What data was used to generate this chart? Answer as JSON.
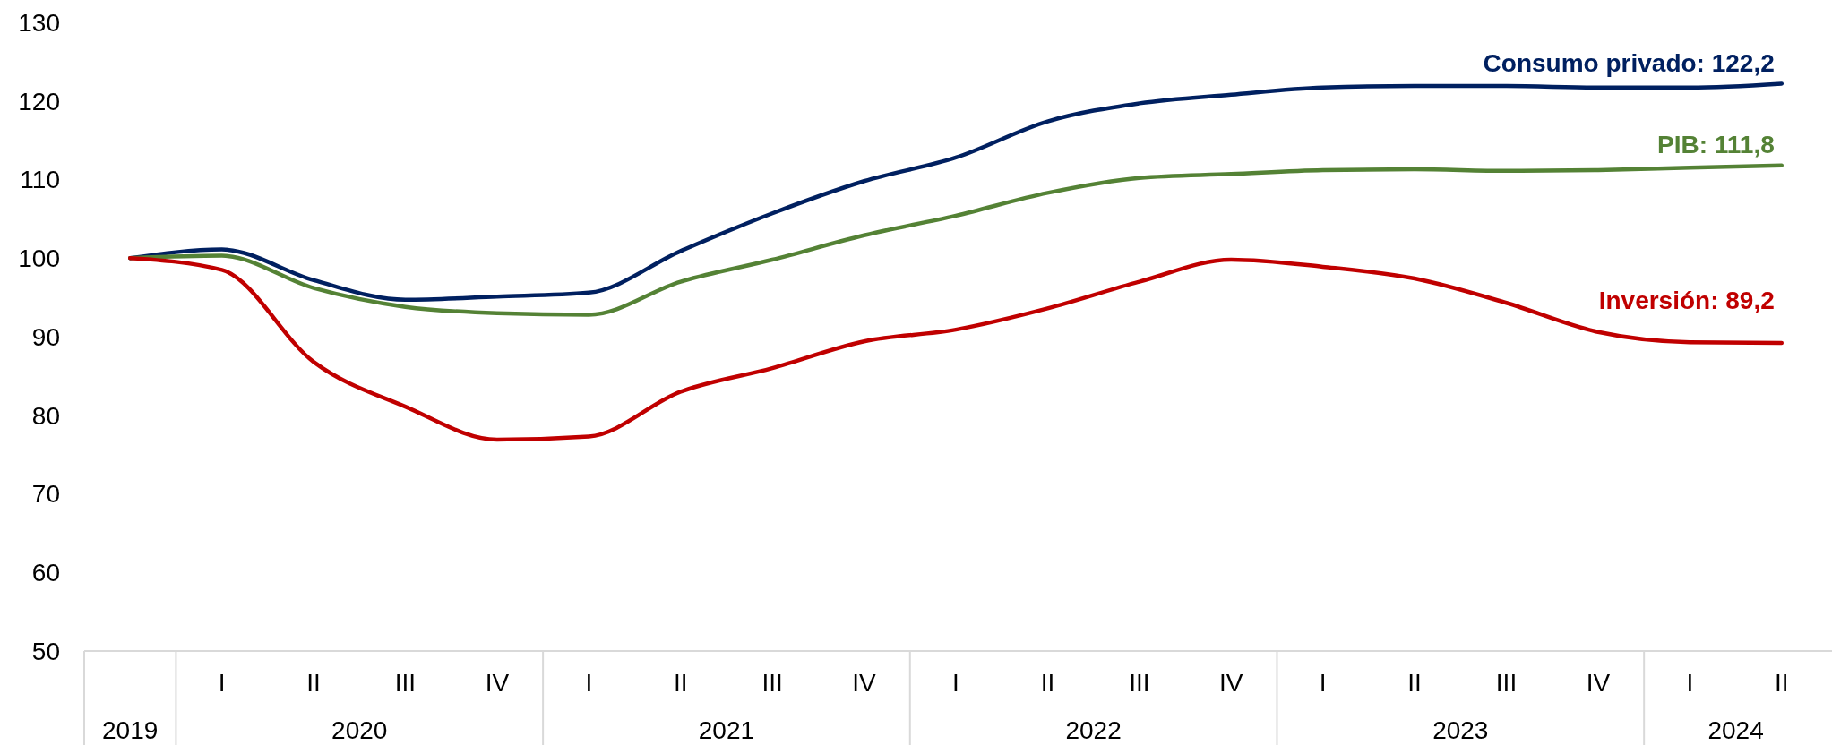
{
  "chart_data": {
    "type": "line",
    "categories": [
      null,
      "I",
      "II",
      "III",
      "IV",
      "I",
      "II",
      "III",
      "IV",
      "I",
      "II",
      "III",
      "IV",
      "I",
      "II",
      "III",
      "IV",
      "I",
      "II"
    ],
    "series": [
      {
        "name": "Consumo privado: 122,2",
        "color": "#002060",
        "values": [
          100,
          101.1,
          97.2,
          94.7,
          95.1,
          95.6,
          100.9,
          105.7,
          109.8,
          112.8,
          117.4,
          119.7,
          120.8,
          121.7,
          121.9,
          121.9,
          121.7,
          121.7,
          122.2
        ]
      },
      {
        "name": "PIB: 111,8",
        "color": "#548235",
        "values": [
          100,
          100.3,
          96.2,
          93.8,
          93.0,
          92.8,
          97.0,
          99.8,
          102.9,
          105.4,
          108.3,
          110.2,
          110.7,
          111.2,
          111.3,
          111.1,
          111.2,
          111.5,
          111.8
        ]
      },
      {
        "name": "Inversión: 89,2",
        "color": "#c00000",
        "values": [
          100,
          98.5,
          86.8,
          81.1,
          76.9,
          77.3,
          83.0,
          86.0,
          89.4,
          90.9,
          93.6,
          97.0,
          99.8,
          98.9,
          97.4,
          94.3,
          90.6,
          89.3,
          89.2
        ]
      }
    ],
    "ylim": [
      50,
      130
    ],
    "yticks": [
      50,
      60,
      70,
      80,
      90,
      100,
      110,
      120,
      130
    ],
    "annotations": [
      "2019",
      "2020",
      "2021",
      "2022",
      "2023",
      "2024"
    ]
  }
}
